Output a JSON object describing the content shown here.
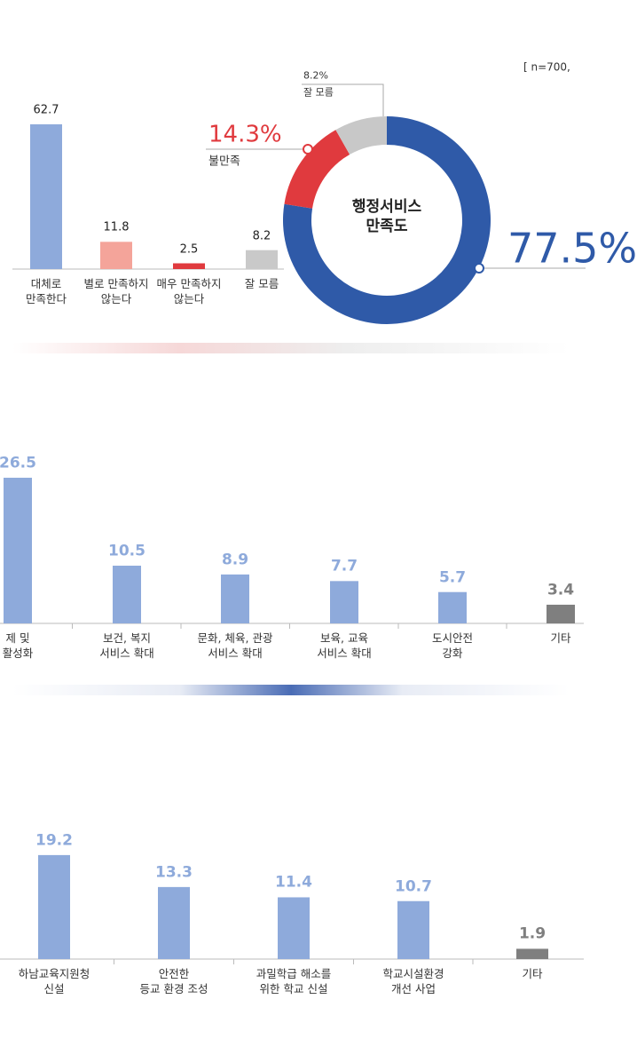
{
  "chart_data": [
    {
      "type": "bar",
      "categories": [
        "대체로\n만족한다",
        "별로 만족하지\n않는다",
        "매우 만족하지\n않는다",
        "잘 모름"
      ],
      "values": [
        62.7,
        11.8,
        2.5,
        8.2
      ],
      "colors": [
        "#8eaadb",
        "#f4a49a",
        "#e03a3e",
        "#c9c9c9"
      ]
    },
    {
      "type": "pie",
      "title": "행정서비스\n만족도",
      "annotation": "[ n=700,",
      "categories": [
        null,
        "불만족",
        "잘 모름"
      ],
      "values": [
        77.5,
        14.3,
        8.2
      ],
      "value_labels": [
        "77.5%",
        "14.3%",
        "8.2%"
      ],
      "colors": [
        "#2f5aa8",
        "#e03a3e",
        "#c8c8c8"
      ]
    },
    {
      "type": "bar",
      "categories": [
        "제 및\n활성화",
        "보건, 복지\n서비스 확대",
        "문화, 체육, 관광\n서비스 확대",
        "보육, 교육\n서비스 확대",
        "도시안전\n강화",
        "기타"
      ],
      "values": [
        26.5,
        10.5,
        8.9,
        7.7,
        5.7,
        3.4
      ],
      "colors": [
        "#8eaadb",
        "#8eaadb",
        "#8eaadb",
        "#8eaadb",
        "#8eaadb",
        "#7f7f7f"
      ]
    },
    {
      "type": "bar",
      "categories": [
        "하남교육지원청\n신설",
        "안전한\n등교 환경 조성",
        "과밀학급 해소를\n위한 학교 신설",
        "학교시설환경\n개선 사업",
        "기타"
      ],
      "values": [
        19.2,
        13.3,
        11.4,
        10.7,
        1.9
      ],
      "colors": [
        "#8eaadb",
        "#8eaadb",
        "#8eaadb",
        "#8eaadb",
        "#7f7f7f"
      ]
    }
  ]
}
